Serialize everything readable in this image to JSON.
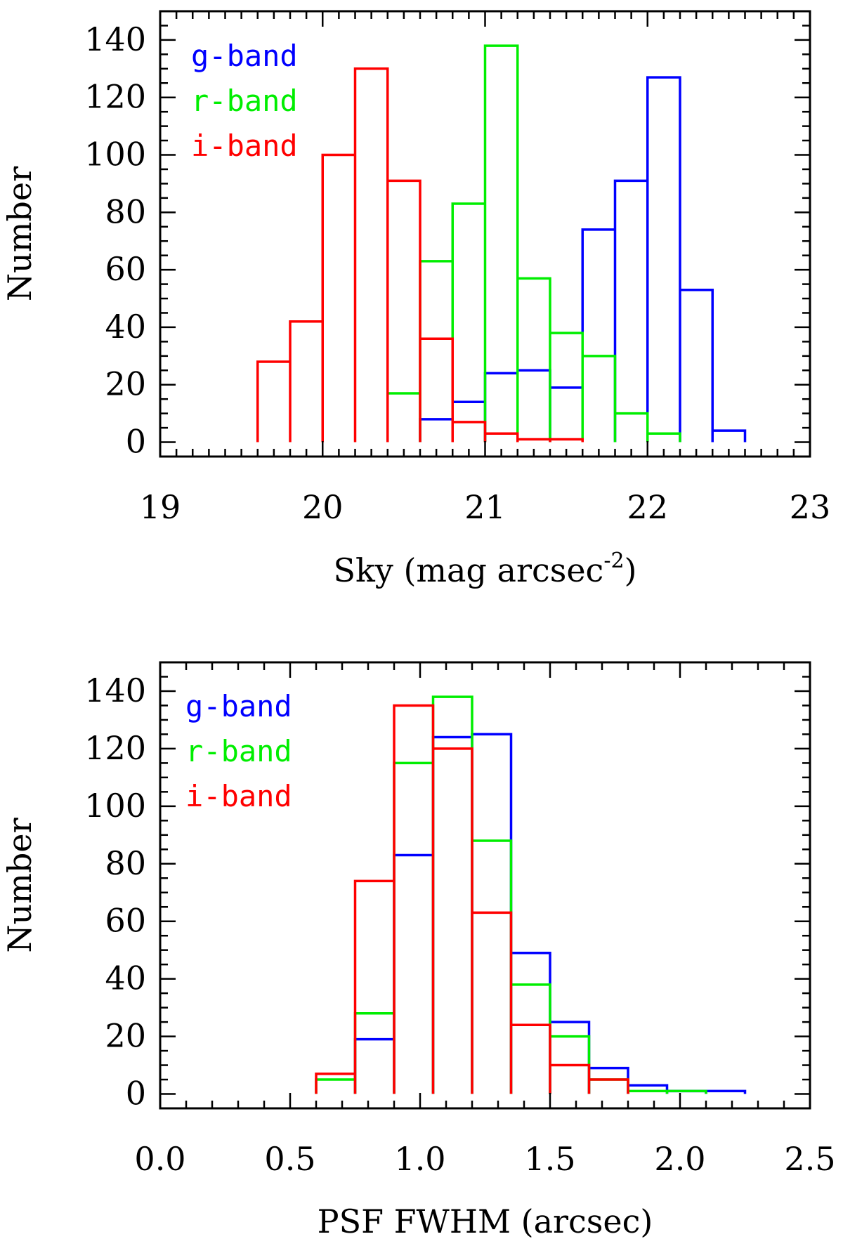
{
  "colors": {
    "g": "#0000ff",
    "r": "#00ee00",
    "i": "#ff0000",
    "axis": "#000000"
  },
  "chart_data": [
    {
      "type": "histogram",
      "xlabel": "Sky (mag arcsec",
      "xlabel_sup": "-2",
      "xlabel_close": ")",
      "ylabel": "Number",
      "xlim": [
        19,
        23
      ],
      "ylim": [
        -5,
        150
      ],
      "x_ticks": [
        19,
        20,
        21,
        22,
        23
      ],
      "x_tick_labels": [
        "19",
        "20",
        "21",
        "22",
        "23"
      ],
      "y_ticks": [
        0,
        20,
        40,
        60,
        80,
        100,
        120,
        140
      ],
      "y_tick_labels": [
        "0",
        "20",
        "40",
        "60",
        "80",
        "100",
        "120",
        "140"
      ],
      "x_minor": 0.1,
      "y_minor": 5,
      "legend_position": "top-left",
      "series": [
        {
          "name": "g-band",
          "color_key": "g",
          "bin_edges": [
            20.6,
            20.8,
            21.0,
            21.2,
            21.4,
            21.6,
            21.8,
            22.0,
            22.2,
            22.4,
            22.6
          ],
          "counts": [
            8,
            14,
            24,
            25,
            19,
            74,
            91,
            127,
            53,
            4
          ]
        },
        {
          "name": "r-band",
          "color_key": "r",
          "bin_edges": [
            20.4,
            20.6,
            20.8,
            21.0,
            21.2,
            21.4,
            21.6,
            21.8,
            22.0,
            22.2
          ],
          "counts": [
            17,
            63,
            83,
            138,
            57,
            38,
            30,
            10,
            3
          ]
        },
        {
          "name": "i-band",
          "color_key": "i",
          "bin_edges": [
            19.6,
            19.8,
            20.0,
            20.2,
            20.4,
            20.6,
            20.8,
            21.0,
            21.2,
            21.4,
            21.6
          ],
          "counts": [
            28,
            42,
            100,
            130,
            91,
            36,
            7,
            3,
            1,
            1
          ]
        }
      ]
    },
    {
      "type": "histogram",
      "xlabel": "PSF FWHM (arcsec)",
      "ylabel": "Number",
      "xlim": [
        0.0,
        2.5
      ],
      "ylim": [
        -5,
        150
      ],
      "x_ticks": [
        0.0,
        0.5,
        1.0,
        1.5,
        2.0,
        2.5
      ],
      "x_tick_labels": [
        "0.0",
        "0.5",
        "1.0",
        "1.5",
        "2.0",
        "2.5"
      ],
      "y_ticks": [
        0,
        20,
        40,
        60,
        80,
        100,
        120,
        140
      ],
      "y_tick_labels": [
        "0",
        "20",
        "40",
        "60",
        "80",
        "100",
        "120",
        "140"
      ],
      "x_minor": 0.1,
      "y_minor": 5,
      "legend_position": "top-left",
      "series": [
        {
          "name": "g-band",
          "color_key": "g",
          "bin_edges": [
            0.75,
            0.9,
            1.05,
            1.2,
            1.35,
            1.5,
            1.65,
            1.8,
            1.95,
            2.1,
            2.25
          ],
          "counts": [
            19,
            83,
            124,
            125,
            49,
            25,
            9,
            3,
            1,
            1
          ]
        },
        {
          "name": "r-band",
          "color_key": "r",
          "bin_edges": [
            0.6,
            0.75,
            0.9,
            1.05,
            1.2,
            1.35,
            1.5,
            1.65,
            1.8,
            1.95,
            2.1
          ],
          "counts": [
            5,
            28,
            115,
            138,
            88,
            38,
            20,
            5,
            1,
            1
          ]
        },
        {
          "name": "i-band",
          "color_key": "i",
          "bin_edges": [
            0.6,
            0.75,
            0.9,
            1.05,
            1.2,
            1.35,
            1.5,
            1.65,
            1.8
          ],
          "counts": [
            7,
            74,
            135,
            120,
            63,
            24,
            10,
            5
          ]
        }
      ]
    }
  ]
}
